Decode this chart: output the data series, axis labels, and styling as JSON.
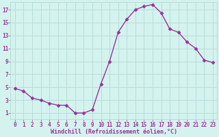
{
  "x": [
    0,
    1,
    2,
    3,
    4,
    5,
    6,
    7,
    8,
    9,
    10,
    11,
    12,
    13,
    14,
    15,
    16,
    17,
    18,
    19,
    20,
    21,
    22,
    23
  ],
  "y": [
    4.8,
    4.4,
    3.3,
    3.0,
    2.5,
    2.2,
    2.2,
    1.0,
    1.0,
    1.5,
    5.5,
    9.0,
    13.5,
    15.5,
    17.0,
    17.5,
    17.8,
    16.5,
    14.0,
    13.5,
    12.0,
    11.0,
    9.2,
    8.8
  ],
  "line_color": "#993399",
  "marker": "D",
  "marker_size": 2.5,
  "bg_color": "#d4f2ee",
  "grid_color": "#b8ddd8",
  "xlabel": "Windchill (Refroidissement éolien,°C)",
  "xlabel_color": "#993399",
  "tick_color": "#993399",
  "ytick_labels": [
    "1",
    "3",
    "5",
    "7",
    "9",
    "11",
    "13",
    "15",
    "17"
  ],
  "ytick_vals": [
    1,
    3,
    5,
    7,
    9,
    11,
    13,
    15,
    17
  ],
  "ylim": [
    0.0,
    18.2
  ],
  "xlim": [
    -0.5,
    23.5
  ],
  "xtick_labels": [
    "0",
    "1",
    "2",
    "3",
    "4",
    "5",
    "6",
    "7",
    "8",
    "9",
    "10",
    "11",
    "12",
    "13",
    "14",
    "15",
    "16",
    "17",
    "18",
    "19",
    "20",
    "21",
    "22",
    "23"
  ],
  "xtick_vals": [
    0,
    1,
    2,
    3,
    4,
    5,
    6,
    7,
    8,
    9,
    10,
    11,
    12,
    13,
    14,
    15,
    16,
    17,
    18,
    19,
    20,
    21,
    22,
    23
  ],
  "xlabel_fontsize": 6.0,
  "xlabel_fontweight": "bold",
  "tick_fontsize": 5.5,
  "linewidth": 1.0
}
